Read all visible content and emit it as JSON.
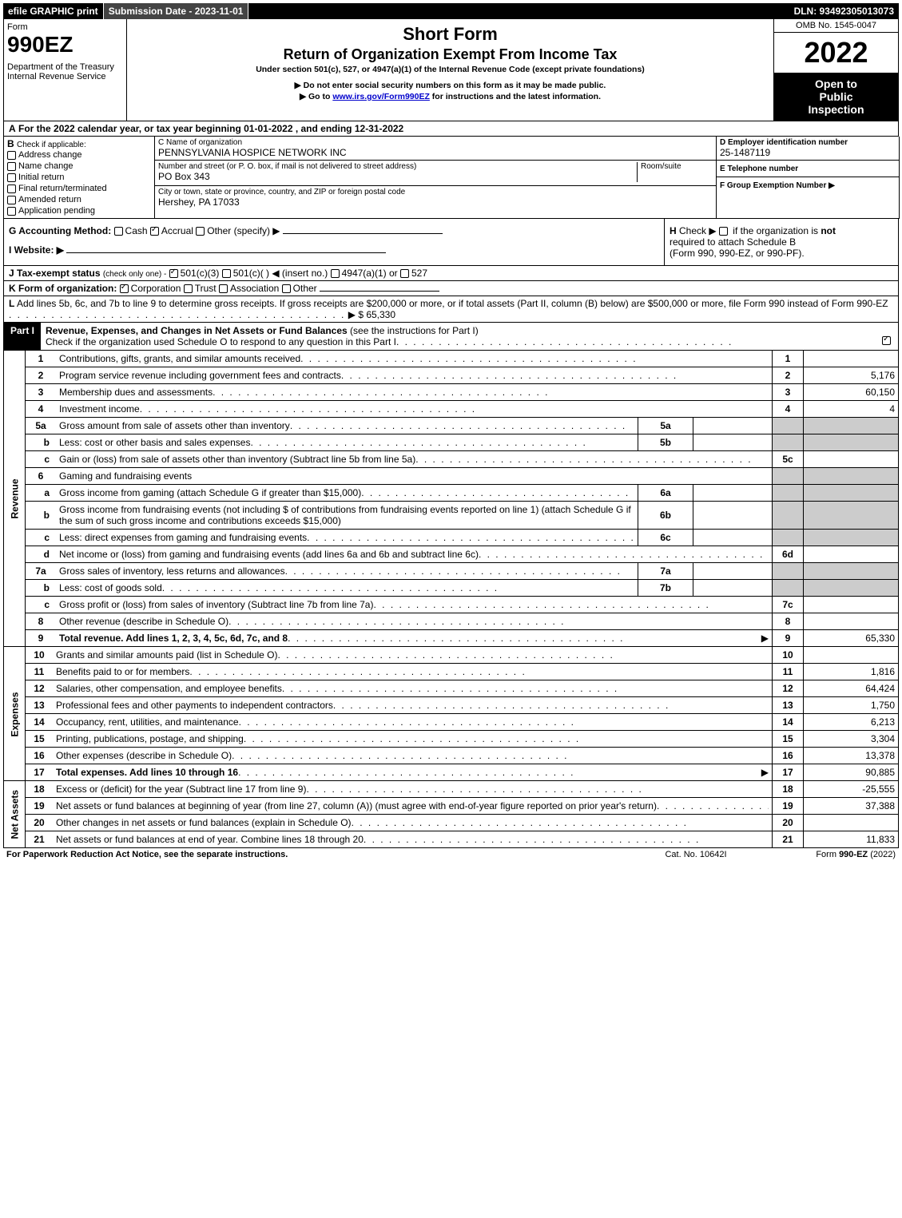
{
  "top_bar": {
    "efile": "efile GRAPHIC print",
    "submission": "Submission Date - 2023-11-01",
    "dln": "DLN: 93492305013073"
  },
  "header": {
    "form_label": "Form",
    "form_number": "990EZ",
    "dept_line1": "Department of the Treasury",
    "dept_line2": "Internal Revenue Service",
    "title1": "Short Form",
    "title2": "Return of Organization Exempt From Income Tax",
    "subtitle": "Under section 501(c), 527, or 4947(a)(1) of the Internal Revenue Code (except private foundations)",
    "note1": "▶ Do not enter social security numbers on this form as it may be made public.",
    "note2_pre": "▶ Go to ",
    "note2_link": "www.irs.gov/Form990EZ",
    "note2_post": " for instructions and the latest information.",
    "omb": "OMB No. 1545-0047",
    "year": "2022",
    "inspect1": "Open to",
    "inspect2": "Public",
    "inspect3": "Inspection"
  },
  "A": {
    "label_pre": "A",
    "text": "For the 2022 calendar year, or tax year beginning 01-01-2022 , and ending 12-31-2022"
  },
  "B": {
    "label": "B",
    "heading": "Check if applicable:",
    "items": [
      {
        "label": "Address change",
        "checked": false
      },
      {
        "label": "Name change",
        "checked": false
      },
      {
        "label": "Initial return",
        "checked": false
      },
      {
        "label": "Final return/terminated",
        "checked": false
      },
      {
        "label": "Amended return",
        "checked": false
      },
      {
        "label": "Application pending",
        "checked": false
      }
    ]
  },
  "C": {
    "name_label": "C Name of organization",
    "name": "PENNSYLVANIA HOSPICE NETWORK INC",
    "street_label": "Number and street (or P. O. box, if mail is not delivered to street address)",
    "street": "PO Box 343",
    "room_label": "Room/suite",
    "city_label": "City or town, state or province, country, and ZIP or foreign postal code",
    "city": "Hershey, PA  17033"
  },
  "D": {
    "label": "D Employer identification number",
    "value": "25-1487119"
  },
  "E": {
    "label": "E Telephone number",
    "value": ""
  },
  "F": {
    "label": "F Group Exemption Number ▶",
    "value": ""
  },
  "G": {
    "label": "G Accounting Method:",
    "opts": [
      {
        "label": "Cash",
        "checked": false
      },
      {
        "label": "Accrual",
        "checked": true
      },
      {
        "label": "Other (specify) ▶",
        "checked": false
      }
    ]
  },
  "H": {
    "label": "H",
    "text1": "Check ▶",
    "text2": "if the organization is ",
    "not": "not",
    "text3": "required to attach Schedule B",
    "text4": "(Form 990, 990-EZ, or 990-PF)."
  },
  "I": {
    "label": "I Website: ▶",
    "value": ""
  },
  "J": {
    "label": "J Tax-exempt status",
    "subtext": "(check only one) -",
    "opts": [
      {
        "label": "501(c)(3)",
        "checked": true
      },
      {
        "label": "501(c)(  ) ◀ (insert no.)",
        "checked": false
      },
      {
        "label": "4947(a)(1) or",
        "checked": false
      },
      {
        "label": "527",
        "checked": false
      }
    ]
  },
  "K": {
    "label": "K Form of organization:",
    "opts": [
      {
        "label": "Corporation",
        "checked": true
      },
      {
        "label": "Trust",
        "checked": false
      },
      {
        "label": "Association",
        "checked": false
      },
      {
        "label": "Other",
        "checked": false
      }
    ]
  },
  "L": {
    "label": "L",
    "text": "Add lines 5b, 6c, and 7b to line 9 to determine gross receipts. If gross receipts are $200,000 or more, or if total assets (Part II, column (B) below) are $500,000 or more, file Form 990 instead of Form 990-EZ",
    "arrow": "▶",
    "amount": "$ 65,330"
  },
  "part1": {
    "label": "Part I",
    "title": "Revenue, Expenses, and Changes in Net Assets or Fund Balances",
    "paren": "(see the instructions for Part I)",
    "check_text": "Check if the organization used Schedule O to respond to any question in this Part I",
    "checked": true
  },
  "sections": {
    "revenue_label": "Revenue",
    "expenses_label": "Expenses",
    "netassets_label": "Net Assets"
  },
  "lines": [
    {
      "n": "1",
      "desc": "Contributions, gifts, grants, and similar amounts received",
      "ref": "1",
      "amt": ""
    },
    {
      "n": "2",
      "desc": "Program service revenue including government fees and contracts",
      "ref": "2",
      "amt": "5,176"
    },
    {
      "n": "3",
      "desc": "Membership dues and assessments",
      "ref": "3",
      "amt": "60,150"
    },
    {
      "n": "4",
      "desc": "Investment income",
      "ref": "4",
      "amt": "4"
    },
    {
      "n": "5a",
      "desc": "Gross amount from sale of assets other than inventory",
      "inner": "5a",
      "innerval": ""
    },
    {
      "n": "b",
      "desc": "Less: cost or other basis and sales expenses",
      "inner": "5b",
      "innerval": ""
    },
    {
      "n": "c",
      "desc": "Gain or (loss) from sale of assets other than inventory (Subtract line 5b from line 5a)",
      "ref": "5c",
      "amt": ""
    },
    {
      "n": "6",
      "desc": "Gaming and fundraising events"
    },
    {
      "n": "a",
      "desc": "Gross income from gaming (attach Schedule G if greater than $15,000)",
      "inner": "6a",
      "innerval": ""
    },
    {
      "n": "b",
      "desc": "Gross income from fundraising events (not including $                    of contributions from fundraising events reported on line 1) (attach Schedule G if the sum of such gross income and contributions exceeds $15,000)",
      "inner": "6b",
      "innerval": ""
    },
    {
      "n": "c",
      "desc": "Less: direct expenses from gaming and fundraising events",
      "inner": "6c",
      "innerval": ""
    },
    {
      "n": "d",
      "desc": "Net income or (loss) from gaming and fundraising events (add lines 6a and 6b and subtract line 6c)",
      "ref": "6d",
      "amt": ""
    },
    {
      "n": "7a",
      "desc": "Gross sales of inventory, less returns and allowances",
      "inner": "7a",
      "innerval": ""
    },
    {
      "n": "b",
      "desc": "Less: cost of goods sold",
      "inner": "7b",
      "innerval": ""
    },
    {
      "n": "c",
      "desc": "Gross profit or (loss) from sales of inventory (Subtract line 7b from line 7a)",
      "ref": "7c",
      "amt": ""
    },
    {
      "n": "8",
      "desc": "Other revenue (describe in Schedule O)",
      "ref": "8",
      "amt": ""
    },
    {
      "n": "9",
      "desc": "Total revenue. Add lines 1, 2, 3, 4, 5c, 6d, 7c, and 8",
      "ref": "9",
      "amt": "65,330",
      "bold": true,
      "arrow": true
    }
  ],
  "expense_lines": [
    {
      "n": "10",
      "desc": "Grants and similar amounts paid (list in Schedule O)",
      "ref": "10",
      "amt": ""
    },
    {
      "n": "11",
      "desc": "Benefits paid to or for members",
      "ref": "11",
      "amt": "1,816"
    },
    {
      "n": "12",
      "desc": "Salaries, other compensation, and employee benefits",
      "ref": "12",
      "amt": "64,424"
    },
    {
      "n": "13",
      "desc": "Professional fees and other payments to independent contractors",
      "ref": "13",
      "amt": "1,750"
    },
    {
      "n": "14",
      "desc": "Occupancy, rent, utilities, and maintenance",
      "ref": "14",
      "amt": "6,213"
    },
    {
      "n": "15",
      "desc": "Printing, publications, postage, and shipping",
      "ref": "15",
      "amt": "3,304"
    },
    {
      "n": "16",
      "desc": "Other expenses (describe in Schedule O)",
      "ref": "16",
      "amt": "13,378"
    },
    {
      "n": "17",
      "desc": "Total expenses. Add lines 10 through 16",
      "ref": "17",
      "amt": "90,885",
      "bold": true,
      "arrow": true
    }
  ],
  "net_lines": [
    {
      "n": "18",
      "desc": "Excess or (deficit) for the year (Subtract line 17 from line 9)",
      "ref": "18",
      "amt": "-25,555"
    },
    {
      "n": "19",
      "desc": "Net assets or fund balances at beginning of year (from line 27, column (A)) (must agree with end-of-year figure reported on prior year's return)",
      "ref": "19",
      "amt": "37,388"
    },
    {
      "n": "20",
      "desc": "Other changes in net assets or fund balances (explain in Schedule O)",
      "ref": "20",
      "amt": ""
    },
    {
      "n": "21",
      "desc": "Net assets or fund balances at end of year. Combine lines 18 through 20",
      "ref": "21",
      "amt": "11,833"
    }
  ],
  "footer": {
    "left": "For Paperwork Reduction Act Notice, see the separate instructions.",
    "mid": "Cat. No. 10642I",
    "right_pre": "Form ",
    "right_bold": "990-EZ",
    "right_post": " (2022)"
  }
}
